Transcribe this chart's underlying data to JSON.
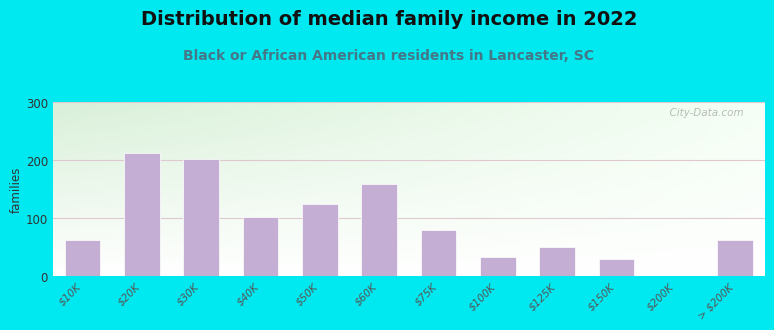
{
  "title": "Distribution of median family income in 2022",
  "subtitle": "Black or African American residents in Lancaster, SC",
  "categories": [
    "$10K",
    "$20K",
    "$30K",
    "$40K",
    "$50K",
    "$60K",
    "$75K",
    "$100K",
    "$125K",
    "$150K",
    "$200K",
    "> $200K"
  ],
  "values": [
    62,
    213,
    202,
    101,
    124,
    158,
    80,
    33,
    50,
    30,
    0,
    62
  ],
  "bar_color": "#c4aed4",
  "bar_edgecolor": "#ffffff",
  "ylabel": "families",
  "ylim": [
    0,
    300
  ],
  "yticks": [
    0,
    100,
    200,
    300
  ],
  "background_outer": "#00e8f0",
  "background_inner_topleft": "#d8efd0",
  "background_inner_right": "#f5fff5",
  "background_inner_bottom": "#ffffff",
  "title_fontsize": 14,
  "subtitle_fontsize": 10,
  "subtitle_color": "#447788",
  "watermark": "  City-Data.com",
  "grid_color": "#e0c8d0",
  "tick_label_fontsize": 7.5,
  "bar_width": 0.6
}
